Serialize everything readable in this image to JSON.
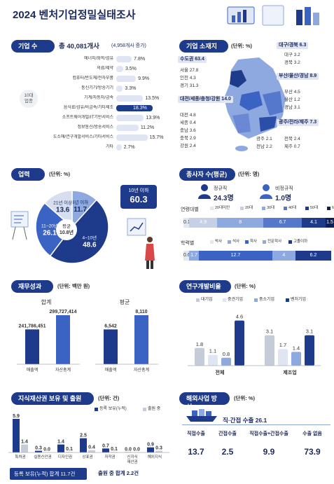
{
  "header": {
    "title": "2024  벤처기업정밀실태조사"
  },
  "colors": {
    "navy": "#1e3a8a",
    "mid": "#3b63c4",
    "light": "#8ea8e0",
    "pale": "#d6def0"
  },
  "sections": {
    "companies": {
      "label": "기업 수",
      "total": "총 40,081개사",
      "increase": "(4,958개사 증가)",
      "side_label": "10대\n업종"
    },
    "location": {
      "label": "기업 소재지",
      "unit": "(단위: %)"
    },
    "sales": {
      "label": "업력",
      "unit": "(단위: %)"
    },
    "employees": {
      "label": "종사자 수(평균)",
      "unit": "(단위: 명)"
    },
    "finance": {
      "label": "재무성과",
      "unit": "(단위: 백만 원)"
    },
    "rnd": {
      "label": "연구개발비율",
      "unit": "(단위: %)"
    },
    "ip": {
      "label": "지식재산권 보유 및 출원",
      "unit": "(단위: 건)"
    },
    "overseas": {
      "label": "해외사업 방식",
      "unit": "(단위: %)"
    }
  },
  "chart_data": [
    {
      "type": "bar",
      "name": "industries",
      "categories": [
        "에너지/화학/섬유",
        "의료/제약",
        "컴퓨터/반도체/전자부품",
        "통신기기/방송기기",
        "기계/자동차/금속",
        "음식료/섬유/비금속/기타제조",
        "소프트웨어개발/IT기반서비스",
        "정보통신/방송서비스",
        "도소매/연구개발서비스/기타서비스",
        "기타"
      ],
      "values": [
        7.8,
        3.5,
        9.9,
        3.3,
        13.5,
        18.3,
        13.9,
        11.2,
        15.7,
        2.7
      ],
      "value_labels": [
        "7.8%",
        "3.5%",
        "9.9%",
        "3.3%",
        "13.5%",
        "18.3%",
        "13.9%",
        "11.2%",
        "15.7%",
        "2.7%"
      ],
      "highlight_index": 5
    },
    {
      "type": "table",
      "name": "regions",
      "left": [
        {
          "label": "수도권",
          "value": "63.4"
        },
        {
          "label": "서울",
          "value": "27.8"
        },
        {
          "label": "인천",
          "value": "4.3"
        },
        {
          "label": "경기",
          "value": "31.3"
        },
        {
          "label": "대전/세종/충청/강원",
          "value": "14.0"
        },
        {
          "label": "대전",
          "value": "4.8"
        },
        {
          "label": "세종",
          "value": "0.4"
        },
        {
          "label": "충남",
          "value": "3.6"
        },
        {
          "label": "충북",
          "value": "2.9"
        },
        {
          "label": "강원",
          "value": "2.4"
        }
      ],
      "right": [
        {
          "label": "대구/경북",
          "value": "6.3"
        },
        {
          "label": "대구",
          "value": "3.2"
        },
        {
          "label": "경북",
          "value": "3.2"
        },
        {
          "label": "부산/울산/경남",
          "value": "8.9"
        },
        {
          "label": "부산",
          "value": "4.5"
        },
        {
          "label": "울산",
          "value": "1.2"
        },
        {
          "label": "경남",
          "value": "3.1"
        },
        {
          "label": "광주/전라/제주",
          "value": "7.3"
        },
        {
          "label": "광주",
          "value": "2.1"
        },
        {
          "label": "전북",
          "value": "2.4"
        },
        {
          "label": "전남",
          "value": "2.2"
        },
        {
          "label": "제주",
          "value": "0.7"
        }
      ]
    },
    {
      "type": "pie",
      "name": "business_age",
      "labels": [
        "10년 이하",
        "4~10년",
        "11~20년",
        "21년 이상",
        "3년 이하"
      ],
      "values": [
        60.3,
        48.6,
        26.1,
        13.6,
        11.7
      ],
      "center_label": "평균",
      "center_value": "10.8년",
      "callout_label": "10년 이하",
      "callout_value": "60.3"
    },
    {
      "type": "bar",
      "name": "employees",
      "regular_label": "정규직",
      "regular_value": "24.3명",
      "irregular_label": "비정규직",
      "irregular_value": "1.0명",
      "age_row": {
        "label": "연령대별",
        "legend": [
          "20대미만",
          "20대",
          "30대",
          "40대",
          "50대",
          "60대이상"
        ],
        "values": [
          0.1,
          4.9,
          8.0,
          6.7,
          4.1,
          1.5
        ]
      },
      "edu_row": {
        "label": "학력별",
        "legend": [
          "박사",
          "석사",
          "학사",
          "전문학사",
          "고졸이하"
        ],
        "values": [
          0.6,
          1.7,
          12.7,
          4.0,
          6.2
        ]
      }
    },
    {
      "type": "bar",
      "name": "finance",
      "groups": [
        {
          "title": "합계",
          "categories": [
            "매출액",
            "자산총계"
          ],
          "values": [
            241786451,
            299727414
          ],
          "value_labels": [
            "241,786,451",
            "299,727,414"
          ]
        },
        {
          "title": "평균",
          "categories": [
            "매출액",
            "자산총계"
          ],
          "values": [
            6542,
            8110
          ],
          "value_labels": [
            "6,542",
            "8,110"
          ]
        }
      ]
    },
    {
      "type": "bar",
      "name": "rnd_ratio",
      "legend": [
        "대기업",
        "중견기업",
        "중소기업",
        "벤처기업"
      ],
      "categories": [
        "전체",
        "제조업"
      ],
      "series": [
        {
          "name": "대기업",
          "values": [
            1.8,
            3.1
          ]
        },
        {
          "name": "중견기업",
          "values": [
            1.1,
            1.7
          ]
        },
        {
          "name": "중소기업",
          "values": [
            0.8,
            1.4
          ]
        },
        {
          "name": "벤처기업",
          "values": [
            4.6,
            3.1
          ]
        }
      ],
      "ylim": [
        0,
        5
      ]
    },
    {
      "type": "bar",
      "name": "ip",
      "legend": [
        "등록 보유(누적)",
        "출원 중"
      ],
      "categories": [
        "특허권",
        "실용신안권",
        "디자인권",
        "상표권",
        "저작권",
        "신지식\n재산권",
        "해외지식"
      ],
      "series": [
        {
          "name": "등록 보유(누적)",
          "values": [
            5.9,
            0.3,
            1.4,
            2.5,
            0.7,
            0.0,
            0.9
          ]
        },
        {
          "name": "출원 중",
          "values": [
            1.4,
            0.0,
            0.1,
            0.4,
            0.1,
            0.0,
            0.3
          ]
        }
      ],
      "value_labels_a": [
        "5.9",
        "0.3",
        "1.4",
        "2.5",
        "0.7",
        "0.0",
        "0.9"
      ],
      "value_labels_b": [
        "1.4",
        "0.0",
        "0.1",
        "0.4",
        "0.1",
        "0.0",
        "0.3"
      ],
      "total_a": "등록 보유(누적) 합계 11.7건",
      "total_b": "출원 중 합계 2.2건"
    },
    {
      "type": "table",
      "name": "overseas",
      "headline": "직·간접 수출 26.1",
      "columns": [
        "직접수출",
        "간접수출",
        "직접수출+간접수출",
        "수출 없음"
      ],
      "values": [
        "13.7",
        "2.5",
        "9.9",
        "73.9"
      ]
    }
  ]
}
